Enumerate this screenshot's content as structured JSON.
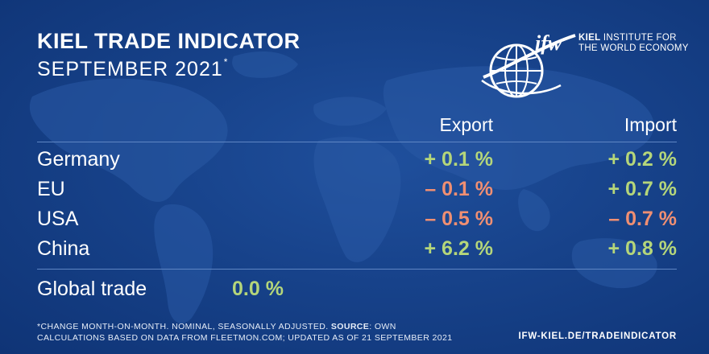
{
  "header": {
    "title": "KIEL TRADE INDICATOR",
    "subtitle": "SEPTEMBER 2021",
    "subtitle_mark": "*"
  },
  "logo": {
    "mark_text": "ifw",
    "name_bold": "KIEL",
    "name_rest": "INSTITUTE FOR",
    "name_line2": "THE WORLD ECONOMY"
  },
  "table": {
    "columns": [
      "Export",
      "Import"
    ],
    "rows": [
      {
        "label": "Germany",
        "export": "+ 0.1 %",
        "export_status": "positive",
        "import": "+ 0.2 %",
        "import_status": "positive"
      },
      {
        "label": "EU",
        "export": "– 0.1 %",
        "export_status": "negative",
        "import": "+ 0.7 %",
        "import_status": "positive"
      },
      {
        "label": "USA",
        "export": "– 0.5 %",
        "export_status": "negative",
        "import": "– 0.7 %",
        "import_status": "negative"
      },
      {
        "label": "China",
        "export": "+ 6.2 %",
        "export_status": "positive",
        "import": "+ 0.8 %",
        "import_status": "positive"
      }
    ],
    "global": {
      "label": "Global trade",
      "value": "0.0 %"
    }
  },
  "footnote": {
    "part1": "*CHANGE MONTH-ON-MONTH. NOMINAL, SEASONALLY ADJUSTED.",
    "source_label": "SOURCE",
    "part2": ": OWN",
    "line2": "CALCULATIONS BASED ON DATA FROM FLEETMON.COM; UPDATED AS OF 21 SEPTEMBER 2021"
  },
  "url": "IFW-KIEL.DE/TRADEINDICATOR",
  "colors": {
    "background": "#17428a",
    "positive": "#b5d67a",
    "negative": "#f08f72",
    "text": "#ffffff"
  }
}
